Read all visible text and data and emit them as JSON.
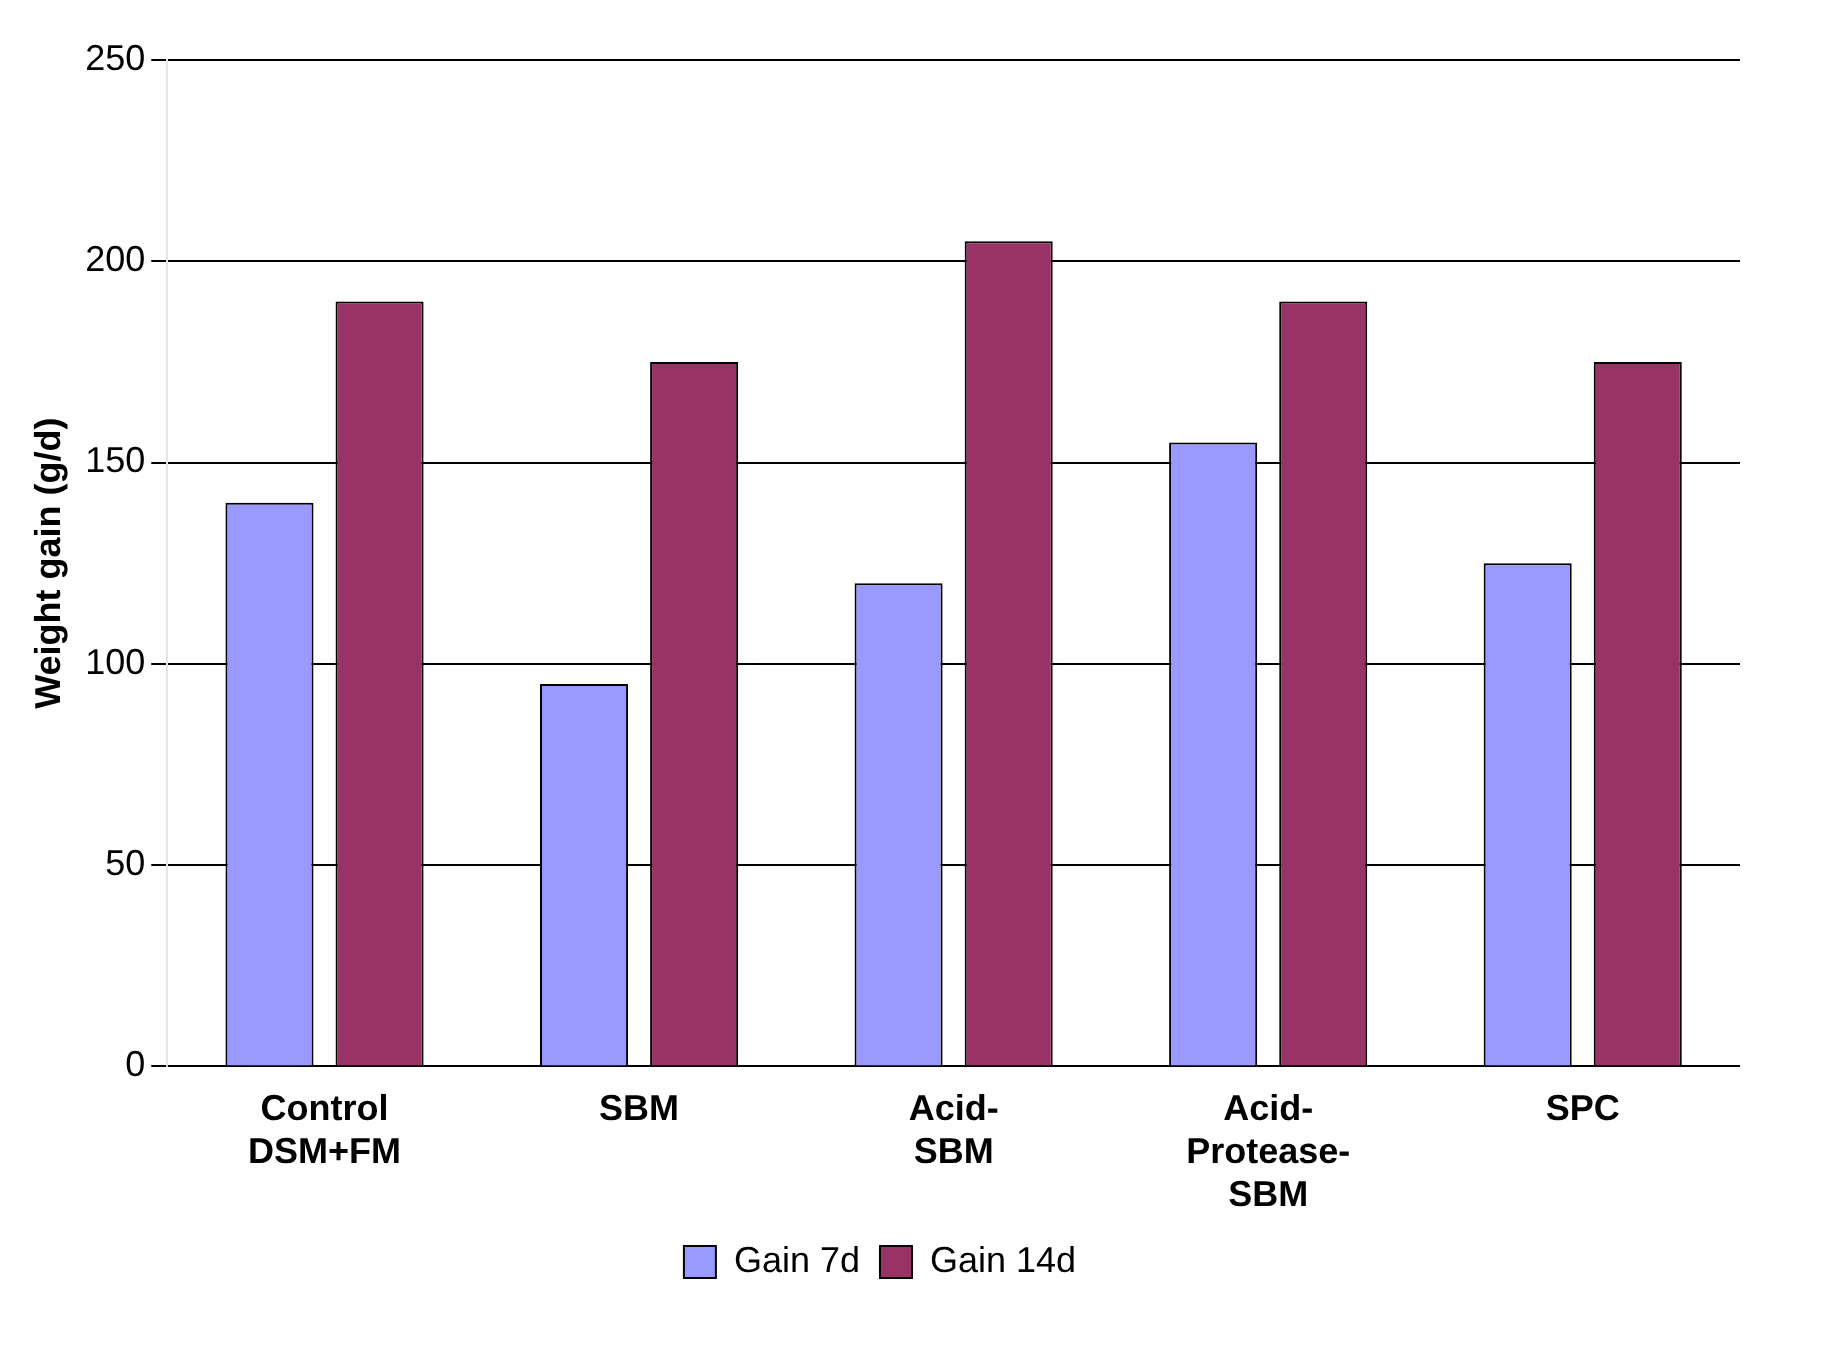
{
  "chart_data": {
    "type": "bar",
    "ylabel": "Weight gain (g/d)",
    "categories": [
      "Control DSM+FM",
      "SBM",
      "Acid-SBM",
      "Acid-Protease-SBM",
      "SPC"
    ],
    "series": [
      {
        "name": "Gain 7d",
        "color": "#9999ff",
        "values": [
          140,
          95,
          120,
          155,
          125
        ]
      },
      {
        "name": "Gain 14d",
        "color": "#993366",
        "values": [
          190,
          175,
          205,
          190,
          175
        ]
      }
    ],
    "ylim": [
      0,
      250
    ],
    "yticks": [
      0,
      50,
      100,
      150,
      200,
      250
    ],
    "grid": "y",
    "legend": "bottom"
  }
}
